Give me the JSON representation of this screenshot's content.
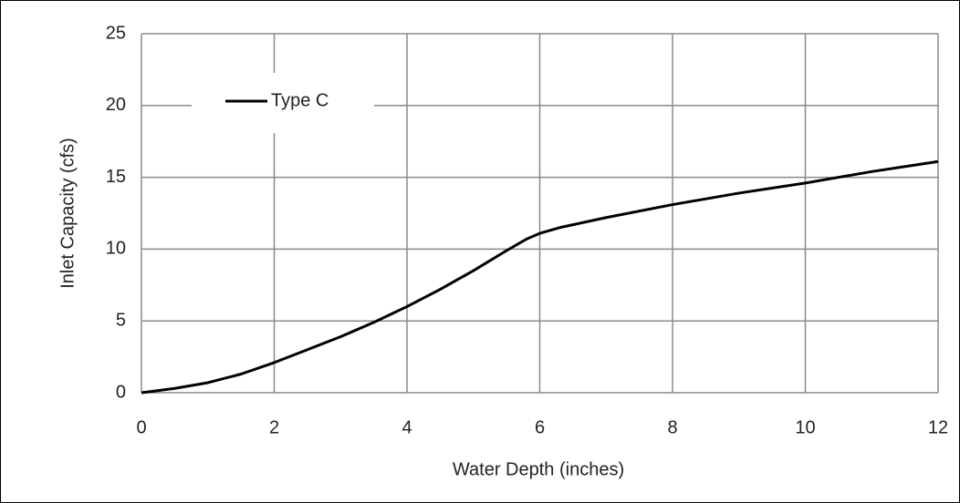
{
  "chart_data": {
    "type": "line",
    "xlabel": "Water Depth (inches)",
    "ylabel": "Inlet Capacity (cfs)",
    "x": [
      0,
      0.5,
      1,
      1.5,
      2,
      2.5,
      3,
      3.5,
      4,
      4.5,
      5,
      5.5,
      5.8,
      6,
      6.3,
      6.5,
      7,
      8,
      9,
      10,
      11,
      12
    ],
    "series": [
      {
        "name": "Type C",
        "color": "#000000",
        "values": [
          0,
          0.3,
          0.7,
          1.3,
          2.1,
          3.0,
          3.9,
          4.9,
          6.0,
          7.2,
          8.5,
          9.9,
          10.7,
          11.1,
          11.5,
          11.7,
          12.2,
          13.1,
          13.9,
          14.6,
          15.4,
          16.1
        ]
      }
    ],
    "xlim": [
      0,
      12
    ],
    "xticks": [
      0,
      2,
      4,
      6,
      8,
      10,
      12
    ],
    "ylim": [
      0,
      25
    ],
    "yticks": [
      0,
      5,
      10,
      15,
      20,
      25
    ],
    "grid": true,
    "legend": "upper left"
  }
}
